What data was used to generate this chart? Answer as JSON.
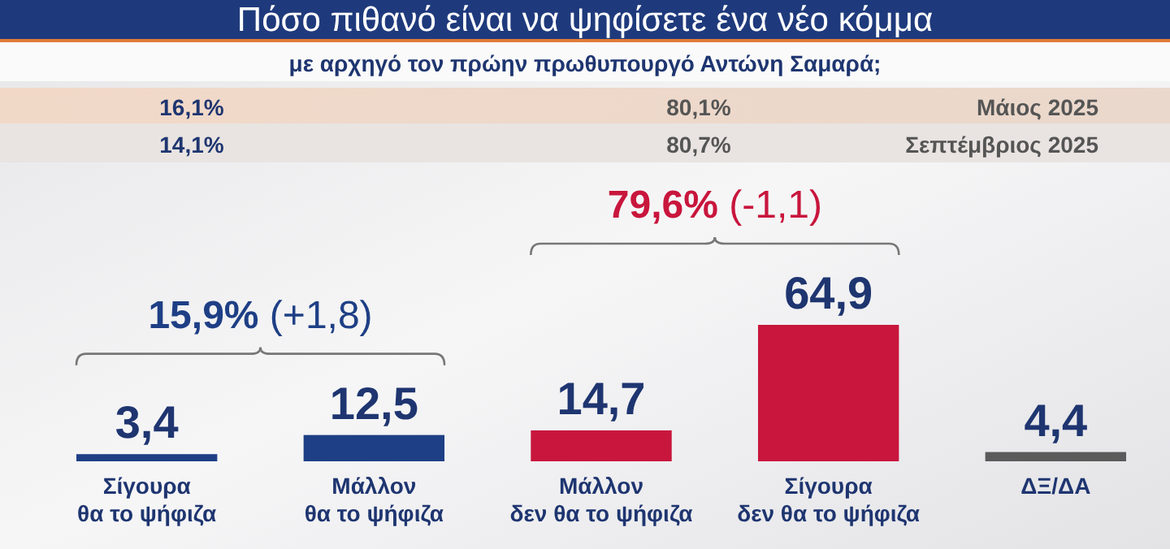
{
  "chart_data": {
    "type": "bar",
    "title": "Πόσο πιθανό είναι να ψηφίσετε ένα νέο κόμμα",
    "subtitle": "με αρχηγό τον πρώην πρωθυπουργό Αντώνη Σαμαρά;",
    "categories": [
      "Σίγουρα\nθα το ψήφιζα",
      "Μάλλον\nθα το ψήφιζα",
      "Μάλλον\nδεν θα το ψήφιζα",
      "Σίγουρα\nδεν θα το ψήφιζα",
      "ΔΞ/ΔΑ"
    ],
    "values": [
      3.4,
      12.5,
      14.7,
      64.9,
      4.4
    ],
    "colors": [
      "#1e3f85",
      "#1e3f85",
      "#c8163c",
      "#c8163c",
      "#5b5b5b"
    ],
    "value_labels": [
      "3,4",
      "12,5",
      "14,7",
      "64,9",
      "4,4"
    ],
    "annotations": [
      "15,9% (+1,8)",
      "79,6% (-1,1)",
      "16,1%",
      "80,1%",
      "Μάιος 2025",
      "14,1%",
      "80,7%",
      "Σεπτέμβριος 2025"
    ],
    "data_labels": true
  }
}
